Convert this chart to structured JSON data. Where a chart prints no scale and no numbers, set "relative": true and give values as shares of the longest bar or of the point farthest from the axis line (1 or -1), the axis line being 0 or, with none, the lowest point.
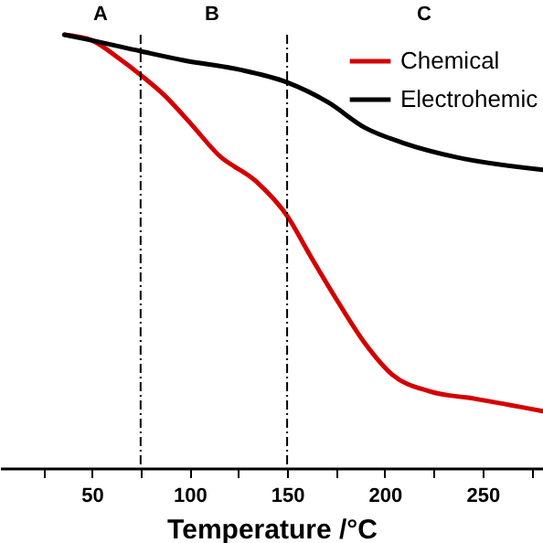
{
  "chart_data": {
    "type": "line",
    "relative": true,
    "xlabel": "Temperature /°C",
    "xlim": [
      3,
      281
    ],
    "xticks": [
      {
        "value": 25,
        "label": null
      },
      50,
      {
        "value": 75,
        "label": null
      },
      100,
      {
        "value": 125,
        "label": null
      },
      150,
      {
        "value": 175,
        "label": null
      },
      200,
      {
        "value": 225,
        "label": null
      },
      250,
      {
        "value": 275,
        "label": null
      }
    ],
    "legend": "top right",
    "grid": false,
    "line_style": "solid",
    "series": [
      {
        "name": "Chemical",
        "color": "#d40000",
        "x": [
          36,
          50,
          64,
          75,
          87,
          101,
          115,
          134,
          150,
          162,
          176,
          190,
          204,
          223,
          246,
          281
        ],
        "values": [
          1.0,
          0.987,
          0.945,
          0.907,
          0.861,
          0.793,
          0.722,
          0.662,
          0.582,
          0.489,
          0.384,
          0.287,
          0.215,
          0.177,
          0.16,
          0.131
        ]
      },
      {
        "name": "Electrohemic",
        "color": "#000000",
        "x": [
          36,
          50,
          75,
          97,
          125,
          150,
          171,
          190,
          209,
          237,
          281
        ],
        "values": [
          1.0,
          0.987,
          0.962,
          0.941,
          0.92,
          0.89,
          0.844,
          0.785,
          0.751,
          0.717,
          0.688
        ]
      }
    ],
    "ref_lines": [
      {
        "axis": "x",
        "value": 75,
        "color": "#000000",
        "line_style": "dashed"
      },
      {
        "axis": "x",
        "value": 150,
        "color": "#000000",
        "line_style": "dashed"
      }
    ],
    "annotations": [
      "A",
      "B",
      "C"
    ]
  }
}
